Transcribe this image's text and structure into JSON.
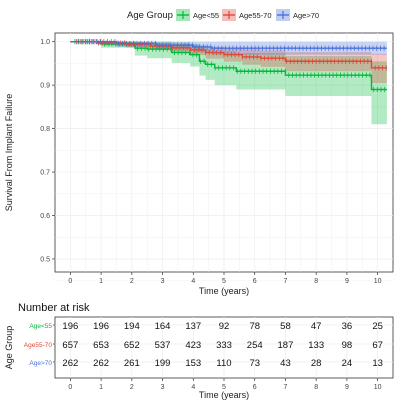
{
  "legend": {
    "title": "Age Group",
    "position": "top"
  },
  "chart_data": [
    {
      "type": "line",
      "subtype": "kaplan-meier-survival",
      "title": "",
      "xlabel": "Time (years)",
      "ylabel": "Survival From Implant Failure",
      "xlim": [
        -0.5,
        10.5
      ],
      "ylim": [
        0.47,
        1.02
      ],
      "x_ticks": [
        "0",
        "1",
        "2",
        "3",
        "4",
        "5",
        "6",
        "7",
        "8",
        "9",
        "10"
      ],
      "y_ticks": [
        "0.5",
        "0.6",
        "0.7",
        "0.8",
        "0.9",
        "1.0"
      ],
      "grid": true,
      "series": [
        {
          "name": "Age<55",
          "color": "#00BA38",
          "steps": [
            [
              0,
              1.0
            ],
            [
              1.0,
              0.995
            ],
            [
              2.1,
              0.985
            ],
            [
              2.5,
              0.983
            ],
            [
              3.3,
              0.975
            ],
            [
              3.9,
              0.97
            ],
            [
              4.2,
              0.955
            ],
            [
              4.4,
              0.948
            ],
            [
              4.7,
              0.94
            ],
            [
              5.4,
              0.932
            ],
            [
              7.0,
              0.923
            ],
            [
              9.8,
              0.89
            ],
            [
              10.3,
              0.89
            ]
          ],
          "ci_lower": [
            [
              0,
              1.0
            ],
            [
              1.0,
              0.986
            ],
            [
              2.1,
              0.968
            ],
            [
              2.5,
              0.962
            ],
            [
              3.3,
              0.951
            ],
            [
              3.9,
              0.943
            ],
            [
              4.2,
              0.922
            ],
            [
              4.4,
              0.912
            ],
            [
              4.7,
              0.9
            ],
            [
              5.4,
              0.89
            ],
            [
              7.0,
              0.875
            ],
            [
              9.8,
              0.81
            ],
            [
              10.3,
              0.81
            ]
          ],
          "ci_upper": [
            [
              0,
              1.0
            ],
            [
              1.0,
              1.0
            ],
            [
              2.1,
              1.0
            ],
            [
              2.5,
              1.0
            ],
            [
              3.3,
              0.998
            ],
            [
              3.9,
              0.995
            ],
            [
              4.2,
              0.986
            ],
            [
              4.4,
              0.983
            ],
            [
              4.7,
              0.978
            ],
            [
              5.4,
              0.974
            ],
            [
              7.0,
              0.967
            ],
            [
              9.8,
              0.955
            ],
            [
              10.3,
              0.955
            ]
          ]
        },
        {
          "name": "Age55-70",
          "color": "#E0463A",
          "steps": [
            [
              0,
              1.0
            ],
            [
              0.9,
              0.997
            ],
            [
              1.8,
              0.994
            ],
            [
              2.6,
              0.99
            ],
            [
              3.3,
              0.986
            ],
            [
              3.9,
              0.981
            ],
            [
              4.4,
              0.975
            ],
            [
              5.0,
              0.97
            ],
            [
              5.6,
              0.965
            ],
            [
              6.2,
              0.962
            ],
            [
              7.0,
              0.955
            ],
            [
              9.8,
              0.94
            ],
            [
              10.3,
              0.94
            ]
          ],
          "ci_lower": [
            [
              0,
              1.0
            ],
            [
              0.9,
              0.992
            ],
            [
              1.8,
              0.987
            ],
            [
              2.6,
              0.981
            ],
            [
              3.3,
              0.975
            ],
            [
              3.9,
              0.969
            ],
            [
              4.4,
              0.961
            ],
            [
              5.0,
              0.954
            ],
            [
              5.6,
              0.947
            ],
            [
              6.2,
              0.942
            ],
            [
              7.0,
              0.932
            ],
            [
              9.8,
              0.905
            ],
            [
              10.3,
              0.905
            ]
          ],
          "ci_upper": [
            [
              0,
              1.0
            ],
            [
              0.9,
              1.0
            ],
            [
              1.8,
              0.999
            ],
            [
              2.6,
              0.997
            ],
            [
              3.3,
              0.995
            ],
            [
              3.9,
              0.992
            ],
            [
              4.4,
              0.988
            ],
            [
              5.0,
              0.985
            ],
            [
              5.6,
              0.982
            ],
            [
              6.2,
              0.98
            ],
            [
              7.0,
              0.976
            ],
            [
              9.8,
              0.972
            ],
            [
              10.3,
              0.972
            ]
          ]
        },
        {
          "name": "Age>70",
          "color": "#4A6FD8",
          "steps": [
            [
              0,
              1.0
            ],
            [
              1.5,
              0.996
            ],
            [
              2.8,
              0.992
            ],
            [
              4.0,
              0.988
            ],
            [
              4.6,
              0.985
            ],
            [
              10.3,
              0.985
            ]
          ],
          "ci_lower": [
            [
              0,
              1.0
            ],
            [
              1.5,
              0.988
            ],
            [
              2.8,
              0.981
            ],
            [
              4.0,
              0.975
            ],
            [
              4.6,
              0.97
            ],
            [
              10.3,
              0.97
            ]
          ],
          "ci_upper": [
            [
              0,
              1.0
            ],
            [
              1.5,
              1.0
            ],
            [
              2.8,
              1.0
            ],
            [
              4.0,
              1.0
            ],
            [
              4.6,
              1.0
            ],
            [
              10.3,
              1.0
            ]
          ]
        }
      ]
    },
    {
      "type": "table",
      "title": "Number at risk",
      "xlabel": "Time (years)",
      "ylabel": "Age Group",
      "columns": [
        "0",
        "1",
        "2",
        "3",
        "4",
        "5",
        "6",
        "7",
        "8",
        "9",
        "10"
      ],
      "rows": [
        {
          "name": "Age<55",
          "color": "#00BA38",
          "values": [
            196,
            196,
            194,
            164,
            137,
            92,
            78,
            58,
            47,
            36,
            25
          ]
        },
        {
          "name": "Age55-70",
          "color": "#E0463A",
          "values": [
            657,
            653,
            652,
            537,
            423,
            333,
            254,
            187,
            133,
            98,
            67
          ]
        },
        {
          "name": "Age>70",
          "color": "#4A6FD8",
          "values": [
            262,
            262,
            261,
            199,
            153,
            110,
            73,
            43,
            28,
            24,
            13
          ]
        }
      ]
    }
  ]
}
